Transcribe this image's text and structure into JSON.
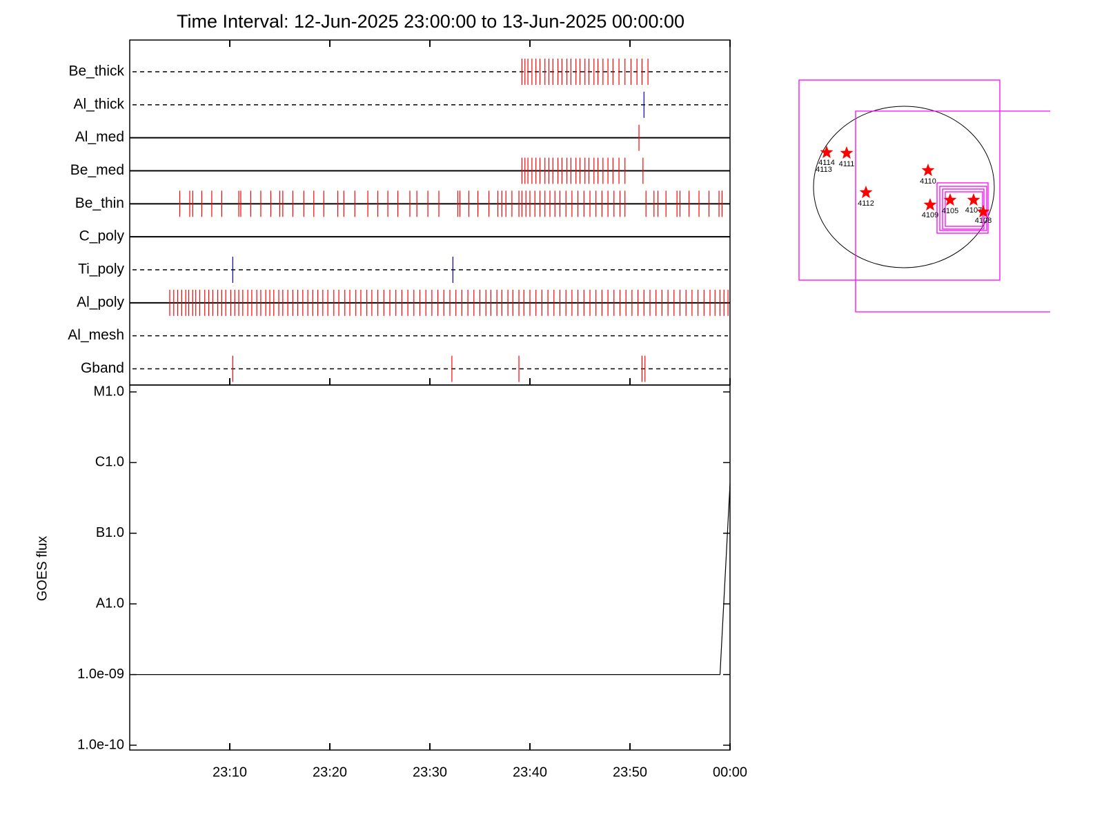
{
  "title": "Time Interval: 12-Jun-2025 23:00:00 to 13-Jun-2025 00:00:00",
  "chart_data": [
    {
      "type": "events",
      "xlim": [
        0,
        60
      ],
      "rows": [
        {
          "name": "Be_thick",
          "line_style": "dashed",
          "color": "#ff0000",
          "times": [
            39.2,
            39.5,
            39.8,
            40.2,
            40.6,
            41.0,
            41.5,
            41.9,
            42.3,
            42.8,
            43.2,
            43.7,
            44.1,
            44.6,
            45.0,
            45.5,
            45.9,
            46.4,
            46.8,
            47.3,
            47.8,
            48.3,
            48.9,
            49.5,
            50.1,
            50.7,
            51.2,
            51.8
          ]
        },
        {
          "name": "Al_thick",
          "line_style": "dashed",
          "color": "#0000aa",
          "times": [
            51.4
          ]
        },
        {
          "name": "Al_med",
          "line_style": "solid",
          "color": "#ff0000",
          "times": [
            50.9
          ]
        },
        {
          "name": "Be_med",
          "line_style": "solid",
          "color": "#ff0000",
          "times": [
            39.2,
            39.5,
            39.8,
            40.2,
            40.6,
            41.0,
            41.5,
            41.9,
            42.3,
            42.8,
            43.2,
            43.7,
            44.1,
            44.6,
            45.0,
            45.5,
            45.9,
            46.4,
            46.8,
            47.3,
            47.8,
            48.3,
            48.9,
            49.5,
            51.3
          ]
        },
        {
          "name": "Be_thin",
          "line_style": "solid",
          "color": "#ff0000",
          "times": [
            5.0,
            6.0,
            6.3,
            7.2,
            8.2,
            9.2,
            10.9,
            11.1,
            12.1,
            13.1,
            14.1,
            15.0,
            15.3,
            16.3,
            17.4,
            18.4,
            19.4,
            20.8,
            21.4,
            22.5,
            23.8,
            24.8,
            25.8,
            26.8,
            28.0,
            28.7,
            29.8,
            30.9,
            32.8,
            33.0,
            33.9,
            34.8,
            35.9,
            36.8,
            37.2,
            37.6,
            38.2,
            38.9,
            39.2,
            39.6,
            40.0,
            40.5,
            41.0,
            41.5,
            42.0,
            42.5,
            43.0,
            43.6,
            44.2,
            44.8,
            45.4,
            46.0,
            46.6,
            47.2,
            47.8,
            48.4,
            49.0,
            49.5,
            51.6,
            52.4,
            52.8,
            53.6,
            54.7,
            55.0,
            55.9,
            56.9,
            57.9,
            58.9,
            59.2
          ]
        },
        {
          "name": "C_poly",
          "line_style": "solid",
          "color": "#ff0000",
          "times": []
        },
        {
          "name": "Ti_poly",
          "line_style": "dashed",
          "color": "#0000aa",
          "times": [
            10.3,
            32.3
          ]
        },
        {
          "name": "Al_poly",
          "line_style": "solid",
          "color": "#ff0000",
          "times": [
            4.0,
            4.4,
            4.8,
            5.2,
            5.6,
            5.9,
            6.3,
            6.6,
            7.0,
            7.5,
            7.9,
            8.3,
            8.8,
            9.2,
            9.6,
            10.1,
            10.5,
            10.9,
            11.3,
            11.8,
            12.2,
            12.7,
            13.1,
            13.6,
            14.0,
            14.4,
            14.9,
            15.3,
            15.8,
            16.3,
            16.8,
            17.3,
            17.8,
            18.3,
            18.8,
            19.3,
            19.8,
            20.4,
            20.9,
            21.5,
            22.0,
            22.6,
            23.1,
            23.7,
            24.2,
            24.8,
            25.4,
            26.0,
            26.6,
            27.2,
            27.8,
            28.4,
            29.0,
            29.6,
            30.2,
            30.8,
            31.4,
            32.0,
            32.6,
            33.2,
            33.8,
            34.4,
            35.0,
            35.6,
            36.1,
            36.7,
            37.2,
            37.8,
            38.3,
            38.9,
            39.4,
            40.0,
            40.6,
            41.2,
            41.8,
            42.4,
            43.0,
            43.6,
            44.2,
            44.8,
            45.4,
            46.0,
            46.6,
            47.2,
            47.8,
            48.4,
            49.0,
            49.6,
            50.2,
            50.8,
            51.4,
            52.0,
            52.6,
            53.2,
            53.8,
            54.4,
            55.0,
            55.6,
            56.2,
            56.8,
            57.4,
            58.0,
            58.5,
            59.0,
            59.4,
            59.8
          ]
        },
        {
          "name": "Al_mesh",
          "line_style": "dashed",
          "color": "#ff0000",
          "times": []
        },
        {
          "name": "Gband",
          "line_style": "dashed",
          "color": "#ff0000",
          "times": [
            10.3,
            32.2,
            38.9,
            51.2,
            51.5
          ]
        }
      ]
    },
    {
      "type": "line",
      "ylabel": "GOES flux",
      "log_scale": true,
      "color": "#000000",
      "x": [
        0,
        59,
        60
      ],
      "values": [
        1e-09,
        1e-09,
        5e-07
      ],
      "xlim": [
        0,
        60
      ],
      "xticks": [
        {
          "value": 10,
          "label": "23:10"
        },
        {
          "value": 20,
          "label": "23:20"
        },
        {
          "value": 30,
          "label": "23:30"
        },
        {
          "value": 40,
          "label": "23:40"
        },
        {
          "value": 50,
          "label": "23:50"
        },
        {
          "value": 60,
          "label": "00:00"
        }
      ],
      "ylim": [
        1e-10,
        1e-05
      ],
      "yticks": [
        {
          "value": 1e-05,
          "label": "M1.0"
        },
        {
          "value": 1e-06,
          "label": "C1.0"
        },
        {
          "value": 1e-07,
          "label": "B1.0"
        },
        {
          "value": 1e-08,
          "label": "A1.0"
        },
        {
          "value": 1e-09,
          "label": "1.0e-09"
        },
        {
          "value": 1e-10,
          "label": "1.0e-10"
        }
      ]
    }
  ],
  "solar_map": {
    "regions": [
      "4114",
      "4113",
      "4111",
      "4110",
      "4112",
      "4109",
      "4105",
      "4107",
      "4108"
    ]
  }
}
